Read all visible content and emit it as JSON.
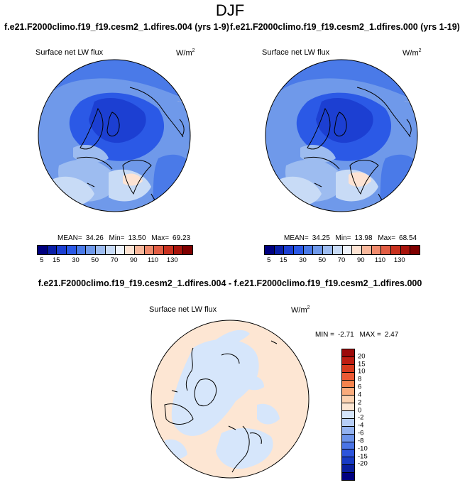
{
  "title": "DJF",
  "panels": [
    {
      "case_title": "f.e21.F2000climo.f19_f19.cesm2_1.dfires.004 (yrs 1-9)",
      "variable": "Surface net LW flux",
      "units": "W/m",
      "units_exp": "2",
      "stats": {
        "mean_label": "MEAN=",
        "mean": "34.26",
        "min_label": "Min=",
        "min": "13.50",
        "max_label": "Max=",
        "max": "69.23"
      }
    },
    {
      "case_title": "f.e21.F2000climo.f19_f19.cesm2_1.dfires.000 (yrs 1-19)",
      "variable": "Surface net LW flux",
      "units": "W/m",
      "units_exp": "2",
      "stats": {
        "mean_label": "MEAN=",
        "mean": "34.25",
        "min_label": "Min=",
        "min": "13.98",
        "max_label": "Max=",
        "max": "68.54"
      }
    }
  ],
  "diff": {
    "title": "f.e21.F2000climo.f19_f19.cesm2_1.dfires.004 - f.e21.F2000climo.f19_f19.cesm2_1.dfires.000",
    "variable": "Surface net LW flux",
    "units": "W/m",
    "units_exp": "2",
    "stats": {
      "min_label": "MIN =",
      "min": "-2.71",
      "max_label": "MAX =",
      "max": "2.47"
    }
  },
  "colorbar_main": {
    "colors": [
      "#00007f",
      "#0a1fa8",
      "#1c3fd2",
      "#2b59e6",
      "#4a7ae8",
      "#6f99ea",
      "#9dbcf0",
      "#c8dbf6",
      "#eef3fb",
      "#fde3d3",
      "#f7b79b",
      "#ef8a6c",
      "#e25e45",
      "#c8311f",
      "#a8140c",
      "#7f0000"
    ],
    "ticks": [
      "5",
      "15",
      "30",
      "50",
      "70",
      "90",
      "110",
      "130"
    ]
  },
  "colorbar_diff": {
    "colors_top_to_bottom": [
      "#9c0a0a",
      "#bd1d12",
      "#d63a1d",
      "#ec5a34",
      "#f5834d",
      "#f9ab7c",
      "#fcd2b1",
      "#fde6d3",
      "#d6e6fb",
      "#b6cdf6",
      "#93b2f0",
      "#6c93ea",
      "#4a74e5",
      "#2d55dc",
      "#183bc4",
      "#0a1f9e",
      "#00007f"
    ],
    "ticks_top_to_bottom": [
      "20",
      "15",
      "10",
      "8",
      "6",
      "4",
      "2",
      "0",
      "-2",
      "-4",
      "-6",
      "-8",
      "-10",
      "-15",
      "-20"
    ]
  },
  "chart_data": [
    {
      "type": "heatmap",
      "projection": "north polar stereographic",
      "title": "f.e21.F2000climo.f19_f19.cesm2_1.dfires.004 (yrs 1-9)",
      "variable": "Surface net LW flux",
      "units": "W/m2",
      "mean": 34.26,
      "min": 13.5,
      "max": 69.23,
      "colorbar_ticks": [
        5,
        15,
        30,
        50,
        70,
        90,
        110,
        130
      ]
    },
    {
      "type": "heatmap",
      "projection": "north polar stereographic",
      "title": "f.e21.F2000climo.f19_f19.cesm2_1.dfires.000 (yrs 1-19)",
      "variable": "Surface net LW flux",
      "units": "W/m2",
      "mean": 34.25,
      "min": 13.98,
      "max": 68.54,
      "colorbar_ticks": [
        5,
        15,
        30,
        50,
        70,
        90,
        110,
        130
      ]
    },
    {
      "type": "heatmap",
      "projection": "north polar stereographic",
      "title": "f.e21.F2000climo.f19_f19.cesm2_1.dfires.004 - f.e21.F2000climo.f19_f19.cesm2_1.dfires.000",
      "variable": "Surface net LW flux",
      "units": "W/m2",
      "min": -2.71,
      "max": 2.47,
      "colorbar_ticks": [
        -20,
        -15,
        -10,
        -8,
        -6,
        -4,
        -2,
        0,
        2,
        4,
        6,
        8,
        10,
        15,
        20
      ]
    }
  ]
}
